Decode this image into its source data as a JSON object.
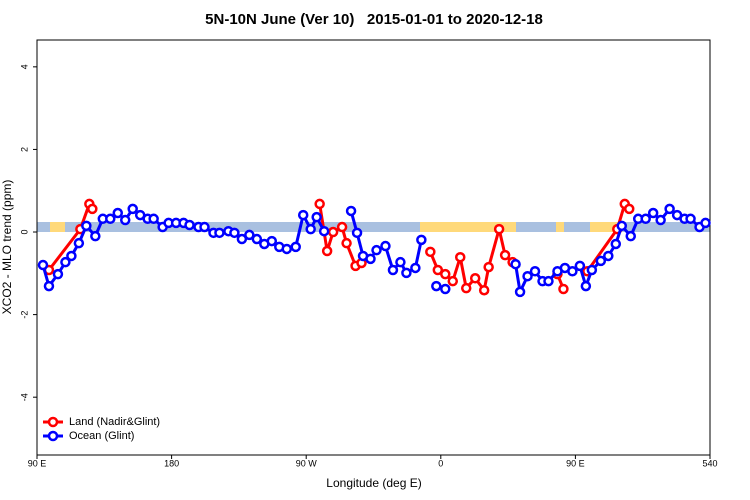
{
  "chart_data": {
    "type": "line",
    "title": "5N-10N June (Ver 10)   2015-01-01 to 2020-12-18",
    "x_label": "Longitude (deg E)",
    "y_label": "XCO2 - MLO trend (ppm)",
    "xlim": [
      90,
      540
    ],
    "xticks": [
      {
        "value": 90,
        "label": "90 E"
      },
      180,
      {
        "value": 270,
        "label": "90 W"
      },
      {
        "value": 360,
        "label": "0"
      },
      {
        "value": 450,
        "label": "90 E"
      },
      540
    ],
    "ylim": [
      -5.4,
      4.65
    ],
    "yticks": [
      -4,
      -2,
      0,
      2,
      4
    ],
    "legend": "bottom-left",
    "series": [
      {
        "name": "Land (Nadir&Glint)",
        "color": "#ff0000",
        "x": [
          98,
          119,
          125,
          127,
          null,
          279,
          284,
          288,
          294,
          297,
          303,
          307,
          null,
          353,
          358,
          363,
          368,
          373,
          377,
          383,
          389,
          392,
          399,
          403,
          408,
          null,
          438,
          442,
          null,
          458,
          478,
          483,
          486
        ],
        "values": [
          -0.92,
          0.07,
          0.68,
          0.56,
          null,
          0.68,
          -0.46,
          0,
          0.12,
          -0.27,
          -0.82,
          -0.75,
          null,
          -0.48,
          -0.92,
          -1.02,
          -1.19,
          -0.61,
          -1.36,
          -1.12,
          -1.41,
          -0.85,
          0.07,
          -0.56,
          -0.73,
          null,
          -1.02,
          -1.38,
          null,
          -0.95,
          0.07,
          0.68,
          0.56
        ]
      },
      {
        "name": "Ocean (Glint)",
        "color": "#0000ff",
        "x": [
          94,
          98,
          104,
          109,
          113,
          118,
          123,
          129,
          134,
          139,
          144,
          149,
          154,
          159,
          164,
          168,
          174,
          178,
          183,
          188,
          192,
          198,
          202,
          208,
          212,
          218,
          222,
          227,
          232,
          237,
          242,
          247,
          252,
          257,
          263,
          268,
          273,
          277,
          282,
          null,
          300,
          304,
          308,
          313,
          317,
          323,
          328,
          333,
          337,
          343,
          347,
          null,
          357,
          363,
          null,
          410,
          413,
          418,
          423,
          428,
          432,
          438,
          443,
          448,
          453,
          457,
          461,
          467,
          472,
          477,
          481,
          487,
          492,
          497,
          502,
          507,
          513,
          518,
          523,
          527,
          533,
          537
        ],
        "values": [
          -0.8,
          -1.31,
          -1.02,
          -0.73,
          -0.58,
          -0.27,
          0.15,
          -0.1,
          0.32,
          0.32,
          0.46,
          0.29,
          0.56,
          0.41,
          0.32,
          0.32,
          0.12,
          0.22,
          0.22,
          0.22,
          0.17,
          0.12,
          0.12,
          -0.02,
          -0.02,
          0.02,
          -0.02,
          -0.17,
          -0.07,
          -0.17,
          -0.29,
          -0.22,
          -0.36,
          -0.41,
          -0.36,
          0.41,
          0.07,
          0.36,
          0.02,
          null,
          0.51,
          -0.02,
          -0.58,
          -0.65,
          -0.44,
          -0.34,
          -0.92,
          -0.73,
          -0.99,
          -0.87,
          -0.19,
          null,
          -1.31,
          -1.38,
          null,
          -0.78,
          -1.45,
          -1.07,
          -0.95,
          -1.19,
          -1.19,
          -0.95,
          -0.87,
          -0.95,
          -0.82,
          -1.31,
          -0.92,
          -0.7,
          -0.58,
          -0.29,
          0.15,
          -0.1,
          0.32,
          0.32,
          0.46,
          0.29,
          0.56,
          0.41,
          0.32,
          0.32,
          0.12,
          0.22
        ]
      }
    ]
  }
}
